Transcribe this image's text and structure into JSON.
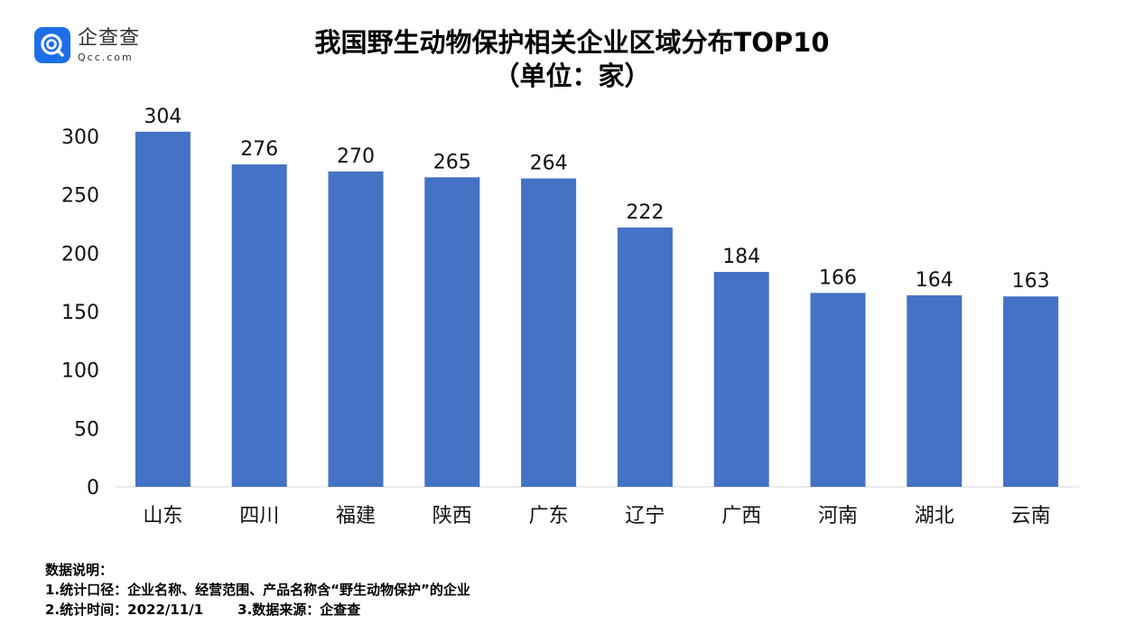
{
  "brand": {
    "name": "企查查",
    "domain": "Qcc.com"
  },
  "colors": {
    "bar": "#4472c4",
    "brand": "#1d6fe8"
  },
  "chart_data": {
    "type": "bar",
    "title": "我国野生动物保护相关企业区域分布TOP10",
    "subtitle": "（单位：家）",
    "categories": [
      "山东",
      "四川",
      "福建",
      "陕西",
      "广东",
      "辽宁",
      "广西",
      "河南",
      "湖北",
      "云南"
    ],
    "values": [
      304,
      276,
      270,
      265,
      264,
      222,
      184,
      166,
      164,
      163
    ],
    "yticks": [
      0,
      50,
      100,
      150,
      200,
      250,
      300
    ],
    "ylim": [
      0,
      300
    ],
    "grid": false,
    "legend": "none",
    "data_labels": true
  },
  "notes": {
    "heading": "数据说明：",
    "line1": "1.统计口径：企业名称、经营范围、产品名称含“野生动物保护”的企业",
    "line2a": "2.统计时间：2022/11/1",
    "line2b": "3.数据来源：企查查"
  }
}
